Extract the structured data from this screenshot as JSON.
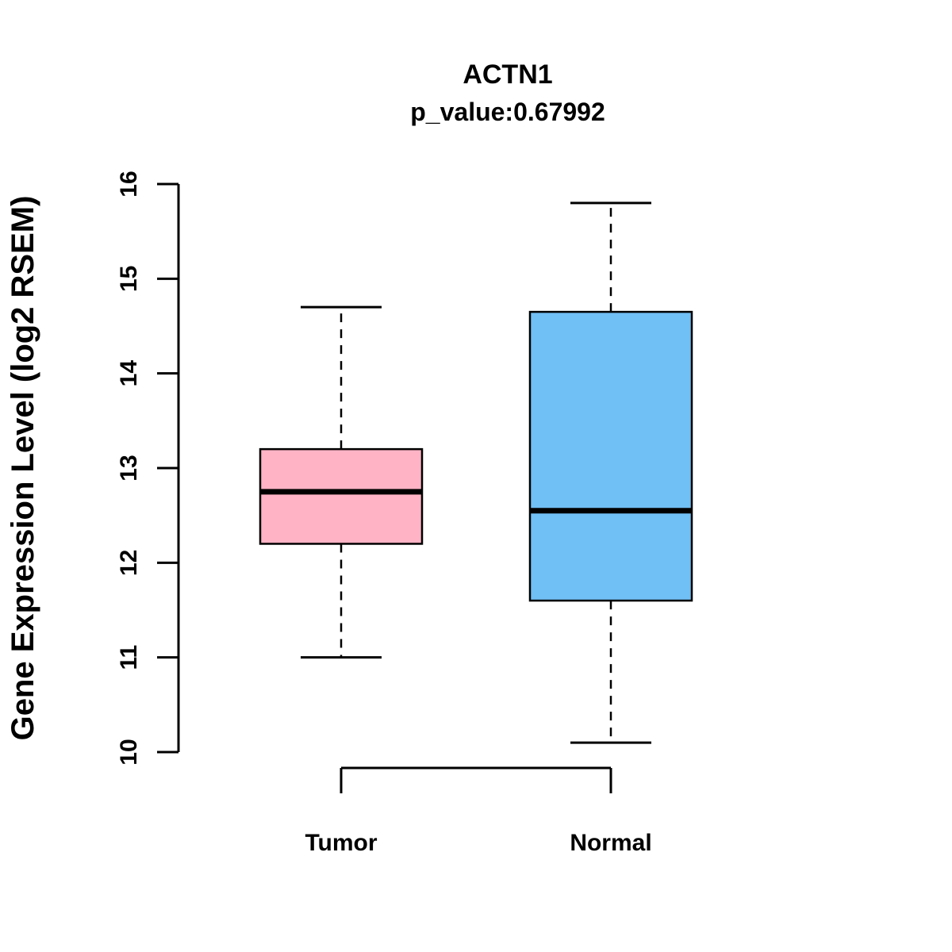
{
  "title": "ACTN1",
  "subtitle": "p_value:0.67992",
  "colors": {
    "axis": "#000000",
    "box_stroke": "#000000",
    "median": "#000000"
  },
  "chart_data": {
    "type": "boxplot",
    "title": "ACTN1",
    "subtitle": "p_value:0.67992",
    "xlabel": "",
    "ylabel": "Gene Expression Level (log2 RSEM)",
    "ylim": [
      10,
      16
    ],
    "yticks": [
      "10",
      "11",
      "12",
      "13",
      "14",
      "15",
      "16"
    ],
    "grid": false,
    "legend": "none",
    "categories": [
      "Tumor",
      "Normal"
    ],
    "series": [
      {
        "name": "Tumor",
        "color": "#FFB3C5",
        "lower_whisker": 11.0,
        "q1": 12.2,
        "median": 12.75,
        "q3": 13.2,
        "upper_whisker": 14.7
      },
      {
        "name": "Normal",
        "color": "#70BFF5",
        "lower_whisker": 10.1,
        "q1": 11.6,
        "median": 12.55,
        "q3": 14.65,
        "upper_whisker": 15.8
      }
    ]
  }
}
